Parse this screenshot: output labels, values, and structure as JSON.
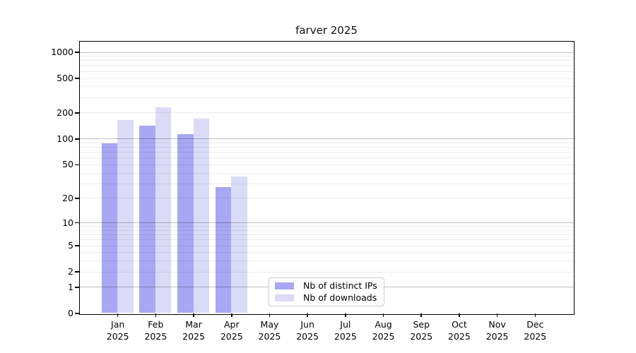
{
  "chart_data": {
    "type": "bar",
    "title": "farver 2025",
    "categories": [
      "Jan",
      "Feb",
      "Mar",
      "Apr",
      "May",
      "Jun",
      "Jul",
      "Aug",
      "Sep",
      "Oct",
      "Nov",
      "Dec"
    ],
    "x_year_label": "2025",
    "y_axis": {
      "scale": "log1p",
      "ticks": [
        0,
        1,
        2,
        5,
        10,
        20,
        50,
        100,
        200,
        500,
        1000
      ],
      "range_max": 1000,
      "major_gridlines": [
        1,
        10,
        100,
        1000
      ]
    },
    "series": [
      {
        "name": "Nb of distinct IPs",
        "color": "#a7a7f3",
        "values": [
          88,
          140,
          112,
          27,
          null,
          null,
          null,
          null,
          null,
          null,
          null,
          null
        ]
      },
      {
        "name": "Nb of downloads",
        "color": "#dbdbf8",
        "values": [
          163,
          230,
          172,
          36,
          null,
          null,
          null,
          null,
          null,
          null,
          null,
          null
        ]
      }
    ],
    "grid": {
      "major_color": "rgba(0,0,0,0.25)",
      "minor_color": "rgba(0,0,0,0.07)"
    },
    "legend_position": "bottom-center"
  }
}
